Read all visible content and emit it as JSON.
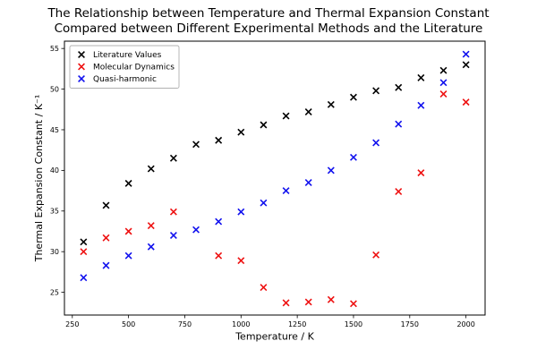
{
  "chart_data": {
    "type": "scatter",
    "title": "The Relationship between Temperature and Thermal Expansion Constant\nCompared between Different Experimental Methods and the Literature",
    "xlabel": "Temperature / K",
    "ylabel": "Thermal Expansion Constant / K⁻¹",
    "xlim": [
      215,
      2085
    ],
    "ylim": [
      22.2,
      55.9
    ],
    "xticks": [
      250,
      500,
      750,
      1000,
      1250,
      1500,
      1750,
      2000
    ],
    "yticks": [
      25,
      30,
      35,
      40,
      45,
      50,
      55
    ],
    "grid": false,
    "marker": "x",
    "legend_position": "upper left",
    "axis_color": "#000000",
    "background_color": "#ffffff",
    "series": [
      {
        "name": "Literature Values",
        "color": "#000000",
        "points": [
          [
            300,
            31.2
          ],
          [
            400,
            35.7
          ],
          [
            500,
            38.4
          ],
          [
            600,
            40.2
          ],
          [
            700,
            41.5
          ],
          [
            800,
            43.2
          ],
          [
            900,
            43.7
          ],
          [
            1000,
            44.7
          ],
          [
            1100,
            45.6
          ],
          [
            1200,
            46.7
          ],
          [
            1300,
            47.2
          ],
          [
            1400,
            48.1
          ],
          [
            1500,
            49.0
          ],
          [
            1600,
            49.8
          ],
          [
            1700,
            50.2
          ],
          [
            1800,
            51.4
          ],
          [
            1900,
            52.3
          ],
          [
            2000,
            53.0
          ]
        ]
      },
      {
        "name": "Molecular Dynamics",
        "color": "#ee1111",
        "points": [
          [
            300,
            30.0
          ],
          [
            400,
            31.7
          ],
          [
            500,
            32.5
          ],
          [
            600,
            33.2
          ],
          [
            700,
            34.9
          ],
          [
            900,
            29.5
          ],
          [
            1000,
            28.9
          ],
          [
            1100,
            25.6
          ],
          [
            1200,
            23.7
          ],
          [
            1300,
            23.8
          ],
          [
            1400,
            24.1
          ],
          [
            1500,
            23.6
          ],
          [
            1600,
            29.6
          ],
          [
            1700,
            37.4
          ],
          [
            1800,
            39.7
          ],
          [
            1900,
            49.4
          ],
          [
            2000,
            48.4
          ]
        ]
      },
      {
        "name": "Quasi-harmonic",
        "color": "#1111ee",
        "points": [
          [
            300,
            26.8
          ],
          [
            400,
            28.3
          ],
          [
            500,
            29.5
          ],
          [
            600,
            30.6
          ],
          [
            700,
            32.0
          ],
          [
            800,
            32.7
          ],
          [
            900,
            33.7
          ],
          [
            1000,
            34.9
          ],
          [
            1100,
            36.0
          ],
          [
            1200,
            37.5
          ],
          [
            1300,
            38.5
          ],
          [
            1400,
            40.0
          ],
          [
            1500,
            41.6
          ],
          [
            1600,
            43.4
          ],
          [
            1700,
            45.7
          ],
          [
            1800,
            48.0
          ],
          [
            1900,
            50.8
          ],
          [
            2000,
            54.3
          ]
        ]
      }
    ]
  }
}
